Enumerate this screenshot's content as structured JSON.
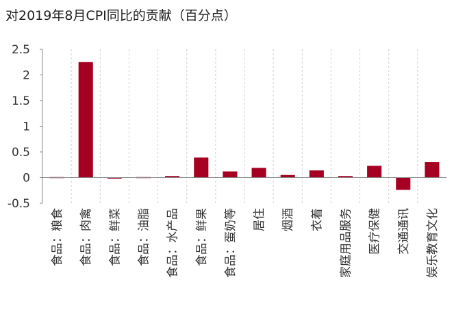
{
  "chart_data": {
    "type": "bar",
    "title": "对2019年8月CPI同比的贡献（百分点）",
    "categories": [
      "食品：粮食",
      "食品：肉禽",
      "食品：鲜菜",
      "食品：油脂",
      "食品：水产品",
      "食品：鲜果",
      "食品：蛋奶等",
      "居住",
      "烟酒",
      "衣着",
      "家庭用品服务",
      "医疗保健",
      "交通通讯",
      "娱乐教育文化"
    ],
    "values": [
      -0.01,
      2.25,
      -0.02,
      -0.01,
      0.03,
      0.39,
      0.12,
      0.19,
      0.05,
      0.14,
      0.03,
      0.23,
      -0.24,
      0.3
    ],
    "xlabel": "",
    "ylabel": "",
    "ylim": [
      -0.5,
      2.5
    ],
    "yticks": [
      -0.5,
      0,
      0.5,
      1,
      1.5,
      2,
      2.5
    ],
    "ytick_labels": [
      "-0.5",
      "0",
      "0.5",
      "1",
      "1.5",
      "2",
      "2.5"
    ],
    "grid": "vertical-category-separators",
    "bar_color": "#a50021",
    "grid_color": "#d0d0d0",
    "axis_color": "#888888"
  }
}
